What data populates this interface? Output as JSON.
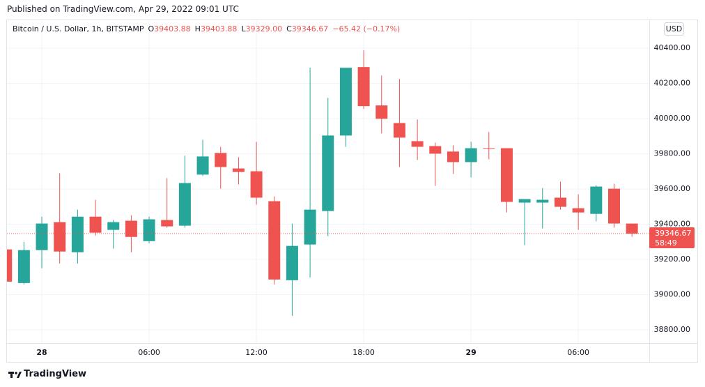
{
  "header": {
    "published": "Published on TradingView.com, Apr 29, 2022 09:01 UTC",
    "symbol": "Bitcoin / U.S. Dollar, 1h, BITSTAMP",
    "ohlc": [
      {
        "key": "O",
        "value": "39403.88"
      },
      {
        "key": "H",
        "value": "39403.88"
      },
      {
        "key": "L",
        "value": "39329.00"
      },
      {
        "key": "C",
        "value": "39346.67"
      }
    ],
    "change": "−65.42 (−0.17%)"
  },
  "currency": "USD",
  "footer": {
    "brand": "TradingView"
  },
  "chart_data": {
    "type": "candlestick",
    "categories": [
      null,
      null,
      "28",
      null,
      null,
      null,
      null,
      null,
      "06:00",
      null,
      null,
      null,
      null,
      null,
      "12:00",
      null,
      null,
      null,
      null,
      null,
      "18:00",
      null,
      null,
      null,
      null,
      null,
      "29",
      null,
      null,
      null,
      null,
      null,
      "06:00",
      null,
      null,
      null
    ],
    "open": [
      39257,
      39066,
      39253,
      39412,
      39241,
      39443,
      39368,
      39420,
      39304,
      39424,
      39392,
      39682,
      39805,
      39717,
      39701,
      39531,
      39082,
      39285,
      39475,
      39904,
      40293,
      40075,
      39975,
      39872,
      39844,
      39813,
      39753,
      39832,
      39832,
      39523,
      39523,
      39551,
      39491,
      39459,
      39602,
      39403.88
    ],
    "high": [
      39260,
      39300,
      39443,
      39690,
      39483,
      39539,
      39424,
      39451,
      39443,
      39662,
      39789,
      39880,
      39840,
      39781,
      39868,
      39558,
      39404,
      40289,
      40118,
      40289,
      40388,
      40245,
      40225,
      39995,
      39864,
      39848,
      39868,
      39924,
      39832,
      39543,
      39606,
      39642,
      39570,
      39622,
      39630,
      39403.88
    ],
    "low": [
      39070,
      39058,
      39150,
      39177,
      39177,
      39336,
      39261,
      39241,
      39292,
      39380,
      39380,
      39674,
      39602,
      39626,
      39511,
      39058,
      38880,
      39098,
      39332,
      39840,
      40055,
      39916,
      39725,
      39765,
      39618,
      39686,
      39666,
      39769,
      39467,
      39281,
      39376,
      39483,
      39368,
      39416,
      39380,
      39329
    ],
    "close": [
      39074,
      39253,
      39404,
      39245,
      39443,
      39352,
      39412,
      39328,
      39428,
      39388,
      39634,
      39785,
      39725,
      39697,
      39551,
      39086,
      39277,
      39483,
      39904,
      40289,
      40071,
      39999,
      39892,
      39840,
      39801,
      39753,
      39832,
      39828,
      39527,
      39543,
      39539,
      39499,
      39467,
      39614,
      39404,
      39346.67
    ],
    "up_color": "#26a69a",
    "down_color": "#ef5350",
    "ylim": [
      38725,
      40559
    ],
    "yticks": [
      {
        "value": 38800,
        "label": "38800.00"
      },
      {
        "value": 39000,
        "label": "39000.00"
      },
      {
        "value": 39200,
        "label": "39200.00"
      },
      {
        "value": 39400,
        "label": "39400.00"
      },
      {
        "value": 39600,
        "label": "39600.00"
      },
      {
        "value": 39800,
        "label": "39800.00"
      },
      {
        "value": 40000,
        "label": "40000.00"
      },
      {
        "value": 40200,
        "label": "40200.00"
      },
      {
        "value": 40400,
        "label": "40400.00"
      }
    ],
    "grid": true,
    "price_line": {
      "value": 39346.67,
      "label": "39346.67",
      "countdown": "58:49"
    }
  }
}
